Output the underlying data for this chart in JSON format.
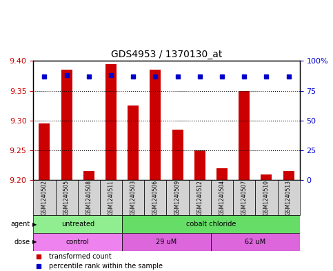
{
  "title": "GDS4953 / 1370130_at",
  "samples": [
    "GSM1240502",
    "GSM1240505",
    "GSM1240508",
    "GSM1240511",
    "GSM1240503",
    "GSM1240506",
    "GSM1240509",
    "GSM1240512",
    "GSM1240504",
    "GSM1240507",
    "GSM1240510",
    "GSM1240513"
  ],
  "bar_values": [
    9.295,
    9.385,
    9.215,
    9.395,
    9.325,
    9.385,
    9.285,
    9.25,
    9.22,
    9.35,
    9.21,
    9.215
  ],
  "percentile_values": [
    87,
    88,
    87,
    88,
    87,
    87,
    87,
    87,
    87,
    87,
    87,
    87
  ],
  "bar_bottom": 9.2,
  "ylim_left": [
    9.2,
    9.4
  ],
  "ylim_right": [
    0,
    100
  ],
  "yticks_left": [
    9.2,
    9.25,
    9.3,
    9.35,
    9.4
  ],
  "yticks_right": [
    0,
    25,
    50,
    75,
    100
  ],
  "ytick_labels_right": [
    "0",
    "25",
    "50",
    "75",
    "100%"
  ],
  "bar_color": "#cc0000",
  "percentile_color": "#0000cc",
  "agent_groups": [
    {
      "label": "untreated",
      "start": 0,
      "end": 4,
      "color": "#90ee90"
    },
    {
      "label": "cobalt chloride",
      "start": 4,
      "end": 12,
      "color": "#66dd66"
    }
  ],
  "dose_groups": [
    {
      "label": "control",
      "start": 0,
      "end": 4,
      "color": "#ee82ee"
    },
    {
      "label": "29 uM",
      "start": 4,
      "end": 8,
      "color": "#dd66dd"
    },
    {
      "label": "62 uM",
      "start": 8,
      "end": 12,
      "color": "#dd66dd"
    }
  ],
  "legend_bar_label": "transformed count",
  "legend_percentile_label": "percentile rank within the sample",
  "xlabel_agent": "agent",
  "xlabel_dose": "dose",
  "grid_color": "#000000",
  "background_color": "#ffffff",
  "plot_bg": "#ffffff",
  "tick_label_color_left": "#cc0000",
  "tick_label_color_right": "#0000cc"
}
